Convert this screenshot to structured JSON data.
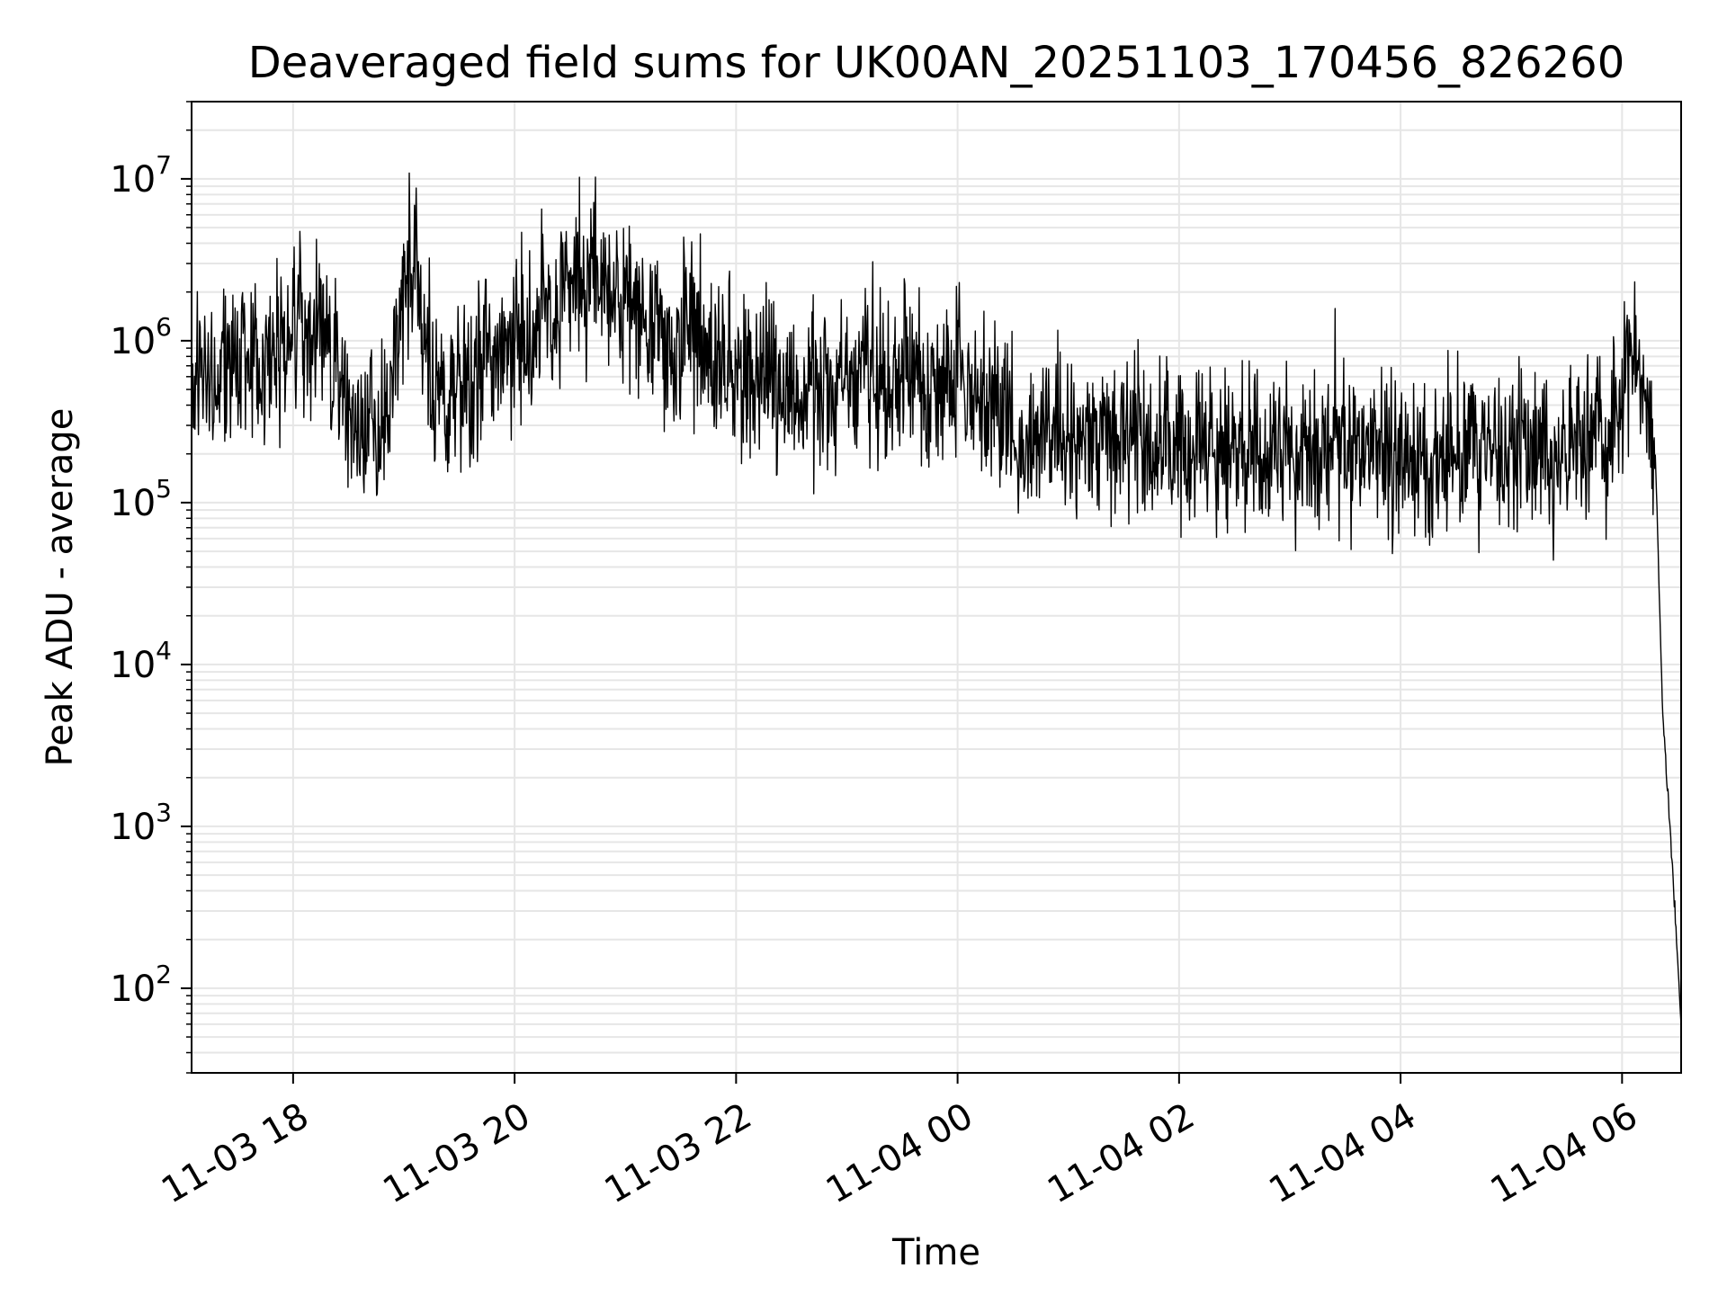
{
  "chart_data": {
    "type": "line",
    "title": "Deaveraged field sums for UK00AN_20251103_170456_826260",
    "xlabel": "Time",
    "ylabel": "Peak ADU - average",
    "x_scale": "time",
    "y_scale": "log",
    "xlim": [
      "2025-11-03 17:05",
      "2025-11-04 06:32"
    ],
    "ylim": [
      30,
      30000000
    ],
    "grid": true,
    "line_color": "#000000",
    "grid_color": "#e6e6e6",
    "x_ticks": [
      {
        "time": "2025-11-03 18:00",
        "label": "11-03 18"
      },
      {
        "time": "2025-11-03 20:00",
        "label": "11-03 20"
      },
      {
        "time": "2025-11-03 22:00",
        "label": "11-03 22"
      },
      {
        "time": "2025-11-04 00:00",
        "label": "11-04 00"
      },
      {
        "time": "2025-11-04 02:00",
        "label": "11-04 02"
      },
      {
        "time": "2025-11-04 04:00",
        "label": "11-04 04"
      },
      {
        "time": "2025-11-04 06:00",
        "label": "11-04 06"
      }
    ],
    "y_ticks": [
      {
        "value": 100,
        "base": "10",
        "exp": "2"
      },
      {
        "value": 1000,
        "base": "10",
        "exp": "3"
      },
      {
        "value": 10000,
        "base": "10",
        "exp": "4"
      },
      {
        "value": 100000,
        "base": "10",
        "exp": "5"
      },
      {
        "value": 1000000,
        "base": "10",
        "exp": "6"
      },
      {
        "value": 10000000,
        "base": "10",
        "exp": "7"
      }
    ],
    "series": [
      {
        "values_approx": {
          "x": [
            "2025-11-03 17:05",
            "2025-11-03 17:30",
            "2025-11-03 17:45",
            "2025-11-03 18:00",
            "2025-11-03 18:20",
            "2025-11-03 18:35",
            "2025-11-03 18:50",
            "2025-11-03 19:00",
            "2025-11-03 19:05",
            "2025-11-03 19:15",
            "2025-11-03 19:30",
            "2025-11-03 19:45",
            "2025-11-03 20:00",
            "2025-11-03 20:20",
            "2025-11-03 20:40",
            "2025-11-03 21:00",
            "2025-11-03 21:20",
            "2025-11-03 21:40",
            "2025-11-03 22:00",
            "2025-11-03 22:30",
            "2025-11-03 23:00",
            "2025-11-03 23:30",
            "2025-11-04 00:00",
            "2025-11-04 00:30",
            "2025-11-04 01:00",
            "2025-11-04 01:30",
            "2025-11-04 02:00",
            "2025-11-04 02:30",
            "2025-11-04 03:00",
            "2025-11-04 03:30",
            "2025-11-04 04:00",
            "2025-11-04 04:30",
            "2025-11-04 05:00",
            "2025-11-04 05:30",
            "2025-11-04 05:55",
            "2025-11-04 06:05",
            "2025-11-04 06:15",
            "2025-11-04 06:18",
            "2025-11-04 06:22",
            "2025-11-04 06:25",
            "2025-11-04 06:28",
            "2025-11-04 06:32"
          ],
          "y": [
            600000,
            800000,
            700000,
            1200000,
            900000,
            250000,
            300000,
            1500000,
            5000000,
            400000,
            500000,
            700000,
            900000,
            1500000,
            2500000,
            1800000,
            1000000,
            1000000,
            600000,
            500000,
            600000,
            550000,
            650000,
            300000,
            250000,
            250000,
            200000,
            220000,
            220000,
            200000,
            180000,
            180000,
            200000,
            200000,
            250000,
            1000000,
            400000,
            200000,
            5000,
            1500,
            400,
            60
          ]
        }
      }
    ]
  }
}
